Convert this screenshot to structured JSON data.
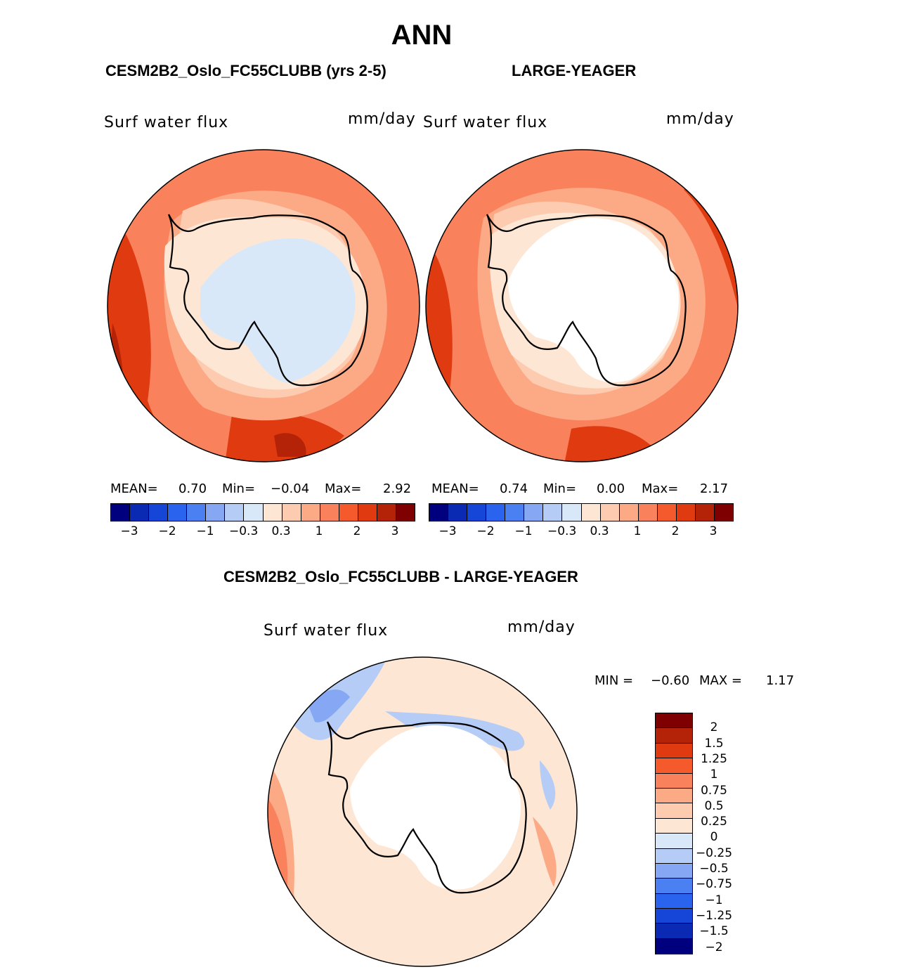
{
  "figure": {
    "title": "ANN",
    "panel1_title": "CESM2B2_Oslo_FC55CLUBB (yrs 2-5)",
    "panel2_title": "LARGE-YEAGER",
    "diff_title": "CESM2B2_Oslo_FC55CLUBB - LARGE-YEAGER"
  },
  "panels": [
    {
      "variable": "Surf water flux",
      "units": "mm/day",
      "mean_label": "MEAN=",
      "mean": "0.70",
      "min_label": "Min=",
      "min": "−0.04",
      "max_label": "Max=",
      "max": "2.92"
    },
    {
      "variable": "Surf water flux",
      "units": "mm/day",
      "mean_label": "MEAN=",
      "mean": "0.74",
      "min_label": "Min=",
      "min": "0.00",
      "max_label": "Max=",
      "max": "2.17"
    }
  ],
  "diff_panel": {
    "variable": "Surf water flux",
    "units": "mm/day",
    "min_label": "MIN =",
    "min": "−0.60",
    "max_label": "MAX =",
    "max": "1.17"
  },
  "colorbar_main": {
    "colors": [
      "#00007f",
      "#0a2ab4",
      "#1546d8",
      "#2a64ee",
      "#4a80f2",
      "#86a8f4",
      "#b4ccf6",
      "#d8e8f8",
      "#fde6d4",
      "#fdcbb0",
      "#fcaa86",
      "#f9825c",
      "#f45a2c",
      "#e03a10",
      "#b42208",
      "#7f0000"
    ],
    "tick_labels": [
      "−3",
      "−2",
      "−1",
      "−0.3",
      "0.3",
      "1",
      "2",
      "3"
    ]
  },
  "colorbar_diff": {
    "colors": [
      "#7f0000",
      "#b42208",
      "#e03a10",
      "#f45a2c",
      "#f9825c",
      "#fcaa86",
      "#fdcbb0",
      "#fde6d4",
      "#d8e8f8",
      "#b4ccf6",
      "#86a8f4",
      "#4a80f2",
      "#2a64ee",
      "#1546d8",
      "#0a2ab4",
      "#00007f"
    ],
    "tick_labels": [
      "2",
      "1.5",
      "1.25",
      "1",
      "0.75",
      "0.5",
      "0.25",
      "0",
      "−0.25",
      "−0.5",
      "−0.75",
      "−1",
      "−1.25",
      "−1.5",
      "−2"
    ]
  },
  "map_colors": {
    "outer": "#f9825c",
    "mid": "#fcaa86",
    "inner": "#fdcbb0",
    "coast": "#fde6d4",
    "dark": "#e03a10",
    "darkest": "#b42208",
    "ice_negative": "#d8e8f8",
    "diff_base": "#fde6d4",
    "diff_blue": "#b4ccf6",
    "diff_orange": "#fcaa86",
    "diff_red": "#f9825c"
  }
}
